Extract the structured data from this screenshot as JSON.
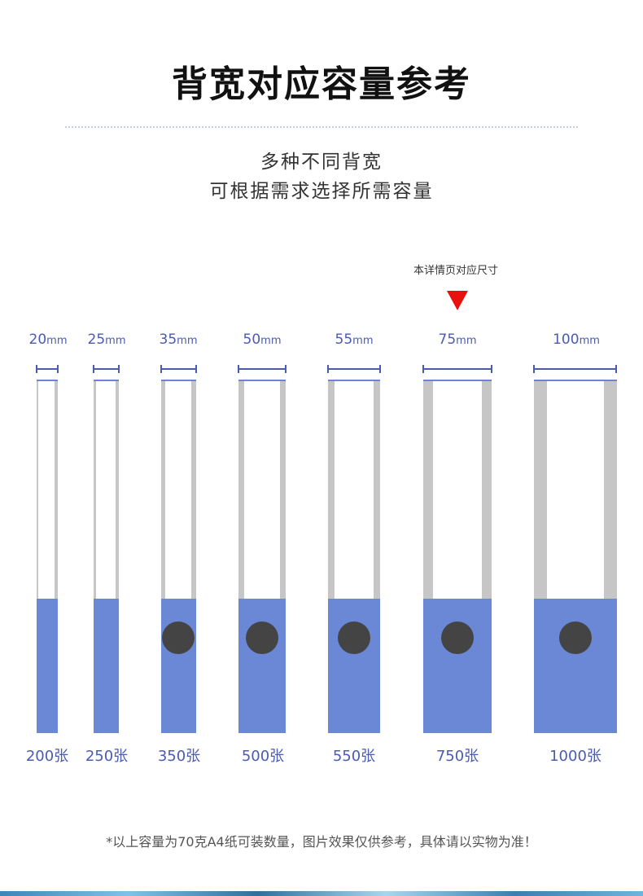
{
  "title": "背宽对应容量参考",
  "subtitle_line1": "多种不同背宽",
  "subtitle_line2": "可根据需求选择所需容量",
  "note": "本详情页对应尺寸",
  "unit": "mm",
  "binders": [
    {
      "width": "20",
      "capacity": "200张",
      "ring": false
    },
    {
      "width": "25",
      "capacity": "250张",
      "ring": false
    },
    {
      "width": "35",
      "capacity": "350张",
      "ring": true
    },
    {
      "width": "50",
      "capacity": "500张",
      "ring": true
    },
    {
      "width": "55",
      "capacity": "550张",
      "ring": true
    },
    {
      "width": "75",
      "capacity": "750张",
      "ring": true,
      "highlighted": true
    },
    {
      "width": "100",
      "capacity": "1000张",
      "ring": true
    }
  ],
  "footnote": "*以上容量为70克A4纸可装数量，图片效果仅供参考，具体请以实物为准！",
  "colors": {
    "accent_blue": "#4a5bb0",
    "binder_blue": "#6a88d6",
    "spine_gray": "#c6c6c6",
    "ring": "#444444",
    "marker_red": "#e8110e"
  }
}
